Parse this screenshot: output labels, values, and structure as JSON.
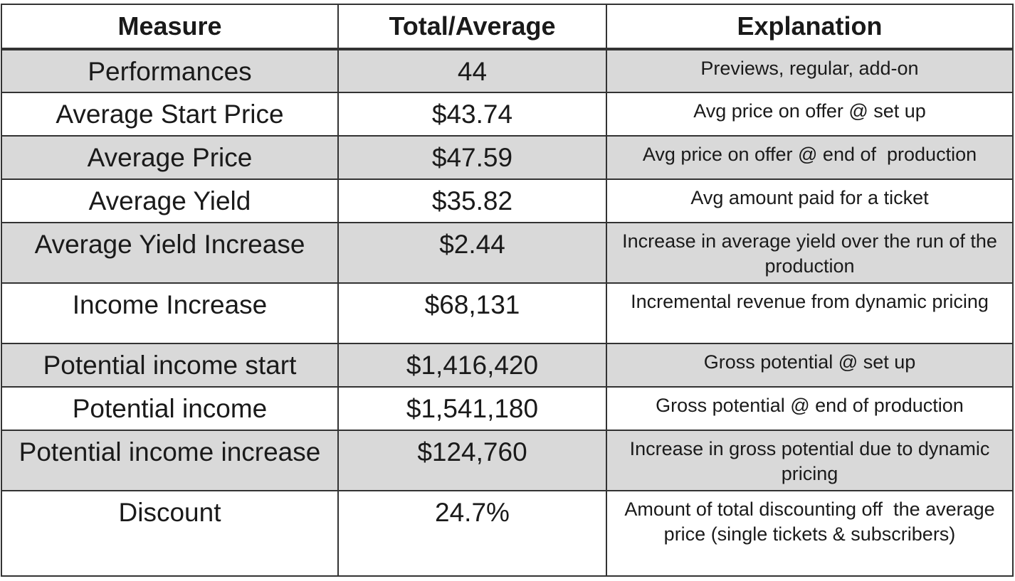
{
  "table": {
    "header": [
      "Measure",
      "Total/Average",
      "Explanation"
    ],
    "rows": [
      [
        "Performances",
        "44",
        "Previews, regular, add-on"
      ],
      [
        "Average Start Price",
        "$43.74",
        "Avg price on offer @ set up"
      ],
      [
        "Average Price",
        "$47.59",
        "Avg price on offer @ end of  production"
      ],
      [
        "Average Yield",
        "$35.82",
        "Avg amount paid for a ticket"
      ],
      [
        "Average Yield Increase",
        "$2.44",
        "Increase in average yield over the run of the production"
      ],
      [
        "Income Increase",
        "$68,131",
        "Incremental revenue from dynamic pricing"
      ],
      [
        "Potential income start",
        "$1,416,420",
        "Gross potential @ set up"
      ],
      [
        "Potential income",
        "$1,541,180",
        "Gross potential @ end of production"
      ],
      [
        "Potential income increase",
        "$124,760",
        "Increase in gross potential due to dynamic pricing"
      ],
      [
        "Discount",
        "24.7%",
        "Amount of total discounting off  the average price (single tickets & subscribers)"
      ]
    ]
  }
}
